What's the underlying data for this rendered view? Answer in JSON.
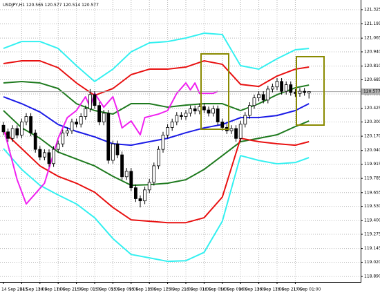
{
  "chart_data": {
    "type": "candlestick",
    "title": "USDJPY,H1",
    "categories": [
      "14 Sep 2015",
      null,
      null,
      null,
      "14 Sep 13:00",
      null,
      null,
      null,
      "14 Sep 17:00",
      null,
      null,
      null,
      "14 Sep 21:00",
      null,
      null,
      null,
      "15 Sep 01:00",
      null,
      null,
      null,
      "15 Sep 05:00",
      null,
      null,
      null,
      "15 Sep 09:00",
      null,
      null,
      null,
      "15 Sep 13:00",
      null,
      null,
      null,
      "15 Sep 17:00",
      null,
      null,
      null,
      "15 Sep 21:00",
      null,
      null,
      null,
      "16 Sep 01:00",
      null,
      null,
      null,
      "16 Sep 05:00",
      null,
      null,
      null,
      "16 Sep 09:00",
      null,
      null,
      null,
      "16 Sep 13:00",
      null,
      null,
      null,
      "16 Sep 17:00",
      null,
      null,
      null,
      "16 Sep 21:00",
      null,
      null,
      null,
      "17 Sep 01:00",
      null,
      null,
      null
    ],
    "open": [
      120.27,
      120.21,
      120.15,
      120.24,
      120.18,
      120.3,
      120.35,
      120.2,
      120.05,
      119.98,
      120.02,
      119.92,
      120.05,
      120.1,
      120.2,
      120.22,
      120.3,
      120.28,
      120.35,
      120.42,
      120.55,
      120.45,
      120.3,
      120.38,
      119.95,
      120.1,
      120.0,
      119.8,
      119.85,
      119.7,
      119.6,
      119.58,
      119.68,
      119.75,
      119.9,
      120.05,
      120.18,
      120.25,
      120.3,
      120.36,
      120.35,
      120.38,
      120.42,
      120.4,
      120.44,
      120.41,
      120.38,
      120.42,
      120.3,
      120.25,
      120.22,
      120.24,
      120.15,
      120.28,
      120.36,
      120.45,
      120.52,
      120.55,
      120.5,
      120.6,
      120.62,
      120.67,
      120.58,
      120.64,
      120.57,
      120.56,
      120.58,
      120.565
    ],
    "high": [
      120.3,
      120.24,
      120.27,
      120.27,
      120.33,
      120.38,
      120.38,
      120.23,
      120.08,
      120.05,
      120.05,
      120.08,
      120.13,
      120.23,
      120.25,
      120.33,
      120.33,
      120.38,
      120.45,
      120.6,
      120.58,
      120.48,
      120.41,
      120.41,
      120.13,
      120.13,
      120.03,
      119.88,
      119.88,
      119.73,
      119.63,
      119.71,
      119.78,
      119.93,
      120.08,
      120.21,
      120.28,
      120.33,
      120.39,
      120.39,
      120.41,
      120.45,
      120.45,
      120.47,
      120.47,
      120.44,
      120.45,
      120.45,
      120.33,
      120.28,
      120.27,
      120.27,
      120.31,
      120.39,
      120.48,
      120.55,
      120.58,
      120.58,
      120.63,
      120.65,
      120.7,
      120.7,
      120.67,
      120.67,
      120.6,
      120.61,
      120.61,
      120.577
    ],
    "low": [
      120.18,
      120.12,
      120.12,
      120.15,
      120.15,
      120.27,
      120.17,
      120.02,
      119.95,
      119.95,
      119.89,
      119.89,
      120.02,
      120.07,
      120.17,
      120.19,
      120.25,
      120.25,
      120.32,
      120.39,
      120.42,
      120.27,
      120.27,
      119.92,
      119.92,
      119.97,
      119.77,
      119.77,
      119.67,
      119.57,
      119.52,
      119.55,
      119.65,
      119.72,
      119.87,
      120.02,
      120.15,
      120.22,
      120.27,
      120.32,
      120.32,
      120.35,
      120.37,
      120.37,
      120.38,
      120.35,
      120.35,
      120.27,
      120.22,
      120.19,
      120.19,
      120.12,
      120.12,
      120.25,
      120.33,
      120.42,
      120.49,
      120.47,
      120.47,
      120.57,
      120.59,
      120.55,
      120.55,
      120.54,
      120.53,
      120.53,
      120.54,
      120.514
    ],
    "close": [
      120.21,
      120.15,
      120.24,
      120.18,
      120.3,
      120.35,
      120.2,
      120.05,
      119.98,
      120.02,
      119.92,
      120.05,
      120.1,
      120.2,
      120.22,
      120.3,
      120.28,
      120.35,
      120.42,
      120.55,
      120.45,
      120.3,
      120.38,
      119.95,
      120.1,
      120.0,
      119.8,
      119.85,
      119.7,
      119.6,
      119.58,
      119.68,
      119.75,
      119.9,
      120.05,
      120.18,
      120.25,
      120.3,
      120.36,
      120.35,
      120.38,
      120.42,
      120.4,
      120.44,
      120.41,
      120.38,
      120.42,
      120.3,
      120.25,
      120.22,
      120.24,
      120.15,
      120.28,
      120.36,
      120.45,
      120.52,
      120.55,
      120.5,
      120.6,
      120.62,
      120.67,
      120.58,
      120.64,
      120.57,
      120.56,
      120.58,
      120.57,
      120.577
    ],
    "series": [
      {
        "color": "#33f0f0",
        "x": [
          0,
          4,
          8,
          12,
          16,
          20,
          24,
          28,
          32,
          36,
          40,
          44,
          48,
          52,
          56,
          60,
          64,
          67
        ],
        "values": [
          120.971,
          121.034,
          121.034,
          120.971,
          120.814,
          120.669,
          120.782,
          120.94,
          121.022,
          121.034,
          121.066,
          121.11,
          121.098,
          120.814,
          120.782,
          120.877,
          120.959,
          120.971
        ]
      },
      {
        "color": "#e81010",
        "x": [
          0,
          4,
          8,
          12,
          16,
          20,
          24,
          28,
          32,
          36,
          40,
          44,
          48,
          52,
          56,
          60,
          64,
          67
        ],
        "values": [
          120.833,
          120.858,
          120.858,
          120.795,
          120.656,
          120.542,
          120.605,
          120.732,
          120.782,
          120.782,
          120.801,
          120.858,
          120.826,
          120.643,
          120.624,
          120.719,
          120.782,
          120.801
        ]
      },
      {
        "color": "#1e7a1e",
        "x": [
          0,
          4,
          8,
          12,
          16,
          20,
          24,
          28,
          32,
          36,
          40,
          44,
          48,
          52,
          56,
          60,
          64,
          67
        ],
        "values": [
          120.656,
          120.669,
          120.656,
          120.605,
          120.467,
          120.404,
          120.372,
          120.467,
          120.467,
          120.435,
          120.454,
          120.467,
          120.467,
          120.404,
          120.467,
          120.549,
          120.612,
          120.637
        ]
      },
      {
        "color": "#1a1ae6",
        "x": [
          0,
          4,
          8,
          12,
          16,
          20,
          24,
          28,
          32,
          36,
          40,
          44,
          48,
          52,
          56,
          60,
          64,
          67
        ],
        "values": [
          120.53,
          120.467,
          120.391,
          120.277,
          120.214,
          120.164,
          120.101,
          120.088,
          120.12,
          120.151,
          120.202,
          120.246,
          120.277,
          120.34,
          120.34,
          120.359,
          120.404,
          120.467
        ]
      },
      {
        "color": "#1e7a1e",
        "x": [
          0,
          4,
          8,
          12,
          16,
          20,
          24,
          28,
          32,
          36,
          40,
          44,
          48,
          52,
          56,
          60,
          64,
          67
        ],
        "values": [
          120.404,
          120.246,
          120.151,
          120.025,
          119.962,
          119.899,
          119.804,
          119.722,
          119.728,
          119.741,
          119.773,
          119.867,
          119.993,
          120.12,
          120.151,
          120.183,
          120.258,
          120.309
        ]
      },
      {
        "color": "#e81010",
        "x": [
          0,
          4,
          8,
          12,
          16,
          20,
          24,
          28,
          32,
          36,
          40,
          44,
          48,
          52,
          56,
          60,
          64,
          67
        ],
        "values": [
          120.214,
          120.057,
          119.899,
          119.804,
          119.741,
          119.659,
          119.52,
          119.407,
          119.394,
          119.381,
          119.381,
          119.426,
          119.615,
          120.151,
          120.12,
          120.101,
          120.088,
          120.12
        ]
      },
      {
        "color": "#33f0f0",
        "x": [
          0,
          4,
          8,
          12,
          16,
          20,
          24,
          28,
          32,
          36,
          40,
          44,
          48,
          52,
          56,
          60,
          64,
          67
        ],
        "values": [
          120.057,
          119.867,
          119.722,
          119.634,
          119.552,
          119.426,
          119.236,
          119.091,
          119.06,
          119.028,
          119.034,
          119.11,
          119.394,
          119.993,
          119.949,
          119.918,
          119.93,
          119.975
        ]
      },
      {
        "color": "#f020f0",
        "x": [
          0,
          3,
          5,
          7,
          9,
          12,
          14,
          16,
          18,
          19,
          20,
          22,
          24,
          25,
          26,
          28,
          30,
          31,
          34,
          36,
          38,
          40,
          41,
          42,
          43,
          44,
          46,
          47
        ],
        "values": [
          120.246,
          119.773,
          119.552,
          119.646,
          119.741,
          120.151,
          120.34,
          120.404,
          120.53,
          120.435,
          120.561,
          120.435,
          120.53,
          120.404,
          120.246,
          120.309,
          120.183,
          120.34,
          120.372,
          120.404,
          120.561,
          120.656,
          120.593,
          120.656,
          120.561,
          120.561,
          120.561,
          120.58
        ]
      }
    ],
    "ylim": [
      118.84,
      121.413
    ],
    "yticks": [
      121.325,
      121.195,
      121.065,
      {
        "value": 120.94,
        "label": "120.940"
      },
      {
        "value": 120.81,
        "label": "120.810"
      },
      120.685,
      120.555,
      120.425,
      {
        "value": 120.3,
        "label": "120.300"
      },
      {
        "value": 120.17,
        "label": "120.170"
      },
      {
        "value": 120.04,
        "label": "120.040"
      },
      119.915,
      119.785,
      119.655,
      {
        "value": 119.53,
        "label": "119.530"
      },
      {
        "value": 119.4,
        "label": "119.400"
      },
      119.275,
      119.145,
      {
        "value": 119.02,
        "label": "119.020"
      },
      {
        "value": 118.89,
        "label": "118.890"
      }
    ],
    "grid": true
  }
}
